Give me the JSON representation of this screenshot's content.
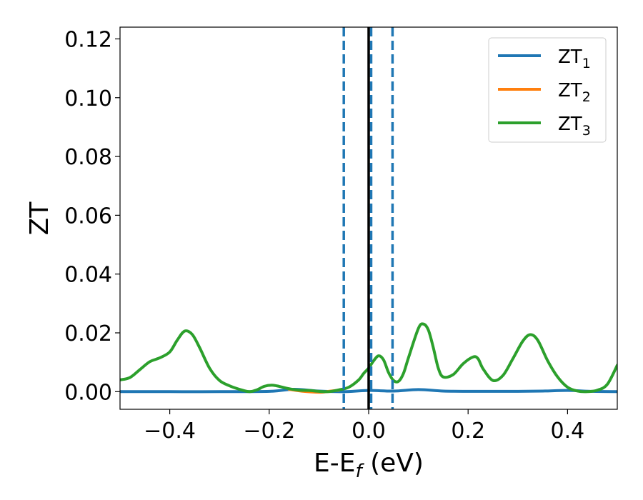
{
  "chart_data": {
    "type": "line",
    "title": "",
    "xlabel": {
      "base": "E-E",
      "sub": "f",
      "tail": " (eV)"
    },
    "ylabel": "ZT",
    "xlim": [
      -0.5,
      0.5
    ],
    "ylim": [
      -0.006,
      0.124
    ],
    "x_ticks": [
      -0.4,
      -0.2,
      0.0,
      0.2,
      0.4
    ],
    "x_tick_labels": [
      "−0.4",
      "−0.2",
      "0.0",
      "0.2",
      "0.4"
    ],
    "y_ticks": [
      0.0,
      0.02,
      0.04,
      0.06,
      0.08,
      0.1,
      0.12
    ],
    "y_tick_labels": [
      "0.00",
      "0.02",
      "0.04",
      "0.06",
      "0.08",
      "0.10",
      "0.12"
    ],
    "grid": false,
    "legend_position": "top-right",
    "series": [
      {
        "name": "ZT",
        "sub": "1",
        "color": "#1f77b4",
        "x": [
          -0.5,
          -0.4,
          -0.3,
          -0.2,
          -0.15,
          -0.1,
          -0.05,
          0.0,
          0.05,
          0.1,
          0.15,
          0.2,
          0.25,
          0.3,
          0.35,
          0.4,
          0.45,
          0.5
        ],
        "y": [
          0.0,
          0.0,
          0.0,
          0.0001,
          0.0008,
          0.0002,
          0.0,
          0.0004,
          0.0002,
          0.0007,
          0.0002,
          0.0001,
          0.0001,
          0.0001,
          0.0002,
          0.0004,
          0.0001,
          0.0
        ]
      },
      {
        "name": "ZT",
        "sub": "2",
        "color": "#ff7f0e",
        "x": [
          -0.16,
          -0.13,
          -0.1,
          -0.08,
          -0.06
        ],
        "y": [
          0.0008,
          0.0001,
          -0.0002,
          0.0001,
          0.0005
        ]
      },
      {
        "name": "ZT",
        "sub": "3",
        "color": "#2ca02c",
        "x": [
          -0.5,
          -0.48,
          -0.46,
          -0.44,
          -0.42,
          -0.4,
          -0.385,
          -0.37,
          -0.355,
          -0.34,
          -0.32,
          -0.3,
          -0.28,
          -0.26,
          -0.24,
          -0.225,
          -0.21,
          -0.195,
          -0.18,
          -0.16,
          -0.14,
          -0.12,
          -0.1,
          -0.08,
          -0.06,
          -0.04,
          -0.02,
          -0.01,
          0.0,
          0.01,
          0.02,
          0.03,
          0.04,
          0.05,
          0.06,
          0.07,
          0.08,
          0.1,
          0.11,
          0.12,
          0.13,
          0.14,
          0.15,
          0.17,
          0.19,
          0.21,
          0.22,
          0.23,
          0.25,
          0.27,
          0.29,
          0.31,
          0.325,
          0.34,
          0.36,
          0.38,
          0.4,
          0.42,
          0.44,
          0.46,
          0.48,
          0.5
        ],
        "y": [
          0.004,
          0.0048,
          0.0075,
          0.0102,
          0.0115,
          0.0135,
          0.0175,
          0.0206,
          0.0195,
          0.015,
          0.008,
          0.0038,
          0.002,
          0.0008,
          0.0,
          0.0006,
          0.0018,
          0.0022,
          0.0018,
          0.001,
          0.0005,
          0.0004,
          0.0001,
          0.0,
          0.0006,
          0.0015,
          0.004,
          0.0062,
          0.008,
          0.0105,
          0.0122,
          0.0108,
          0.0065,
          0.0038,
          0.0035,
          0.0062,
          0.0115,
          0.0215,
          0.023,
          0.021,
          0.015,
          0.008,
          0.005,
          0.0058,
          0.0095,
          0.0118,
          0.0112,
          0.0078,
          0.0038,
          0.0055,
          0.0112,
          0.0172,
          0.0194,
          0.0175,
          0.0105,
          0.005,
          0.0015,
          0.0002,
          0.0,
          0.0005,
          0.0025,
          0.009
        ]
      }
    ],
    "vertical_lines": [
      {
        "x": -0.05,
        "style": "dashed",
        "color": "#1f77b4"
      },
      {
        "x": 0.005,
        "style": "dashed",
        "color": "#1f77b4"
      },
      {
        "x": 0.048,
        "style": "dashed",
        "color": "#1f77b4"
      },
      {
        "x": 0.0,
        "style": "solid",
        "color": "#000000"
      }
    ]
  }
}
